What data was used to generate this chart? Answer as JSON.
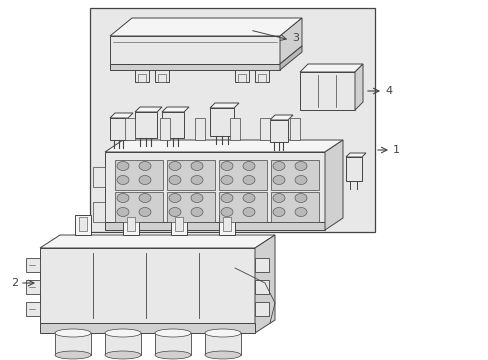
{
  "bg_color": "#ffffff",
  "diagram_bg": "#e8e8e8",
  "line_color": "#444444",
  "fill_white": "#f5f5f5",
  "fill_light": "#e8e8e8",
  "fill_mid": "#d0d0d0",
  "fill_dark": "#b8b8b8",
  "label_fontsize": 8,
  "fig_width": 4.89,
  "fig_height": 3.6,
  "dpi": 100,
  "label1": "1",
  "label2": "2",
  "label3": "3",
  "label4": "4"
}
